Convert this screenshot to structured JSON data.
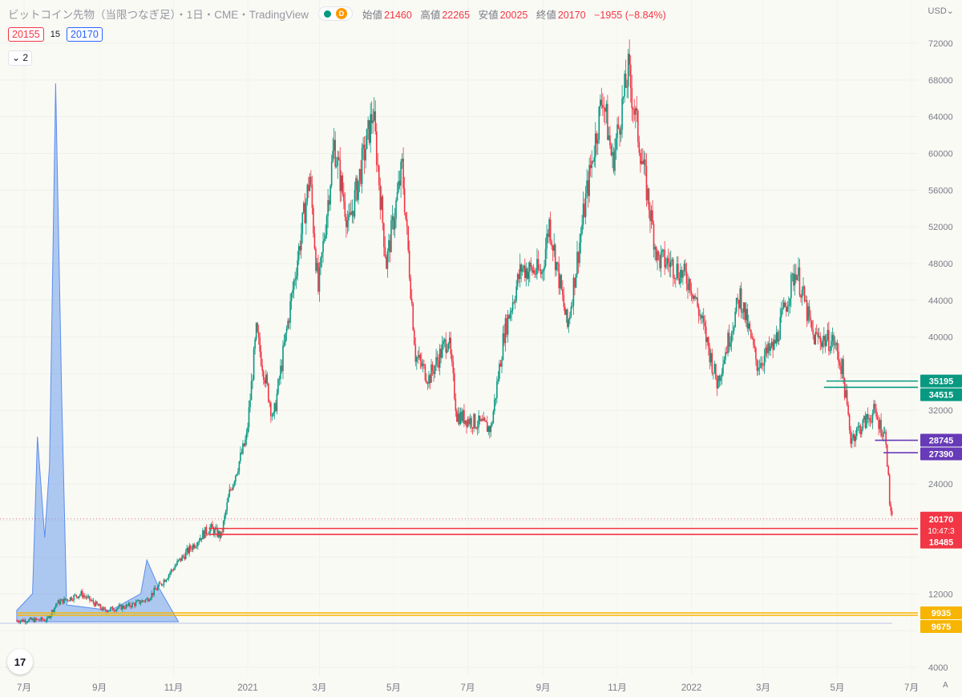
{
  "header": {
    "title": "ビットコイン先物（当限つなぎ足）・1日・CME・TradingView",
    "badge": "D",
    "ohlc_open_label": "始値",
    "ohlc_open": "21460",
    "ohlc_high_label": "高値",
    "ohlc_high": "22265",
    "ohlc_low_label": "安値",
    "ohlc_low": "20025",
    "ohlc_close_label": "終値",
    "ohlc_close": "20170",
    "ohlc_change": "−1955 (−8.84%)"
  },
  "quote": {
    "bid": "20155",
    "spread": "15",
    "ask": "20170"
  },
  "collapse_label": "2",
  "currency": "USD",
  "logo_text": "17",
  "auto_label": "A",
  "chart_data": {
    "type": "candlestick",
    "title": "ビットコイン先物（当限つなぎ足）",
    "interval": "1日",
    "exchange": "CME",
    "y_axis": {
      "ticks": [
        4000,
        8000,
        12000,
        16000,
        20000,
        24000,
        28000,
        32000,
        36000,
        40000,
        44000,
        48000,
        52000,
        56000,
        60000,
        64000,
        68000,
        72000
      ],
      "labels": [
        "4000",
        "",
        "12000",
        "",
        "",
        "24000",
        "",
        "32000",
        "",
        "40000",
        "44000",
        "48000",
        "52000",
        "56000",
        "60000",
        "64000",
        "68000",
        "72000"
      ],
      "range": [
        3400,
        73600
      ]
    },
    "x_axis": {
      "labels": [
        "7月",
        "9月",
        "11月",
        "2021",
        "3月",
        "5月",
        "7月",
        "9月",
        "11月",
        "2022",
        "3月",
        "5月",
        "7月"
      ],
      "dates": [
        "2020-07-01",
        "2020-09-01",
        "2020-11-01",
        "2021-01-01",
        "2021-03-01",
        "2021-05-01",
        "2021-07-01",
        "2021-09-01",
        "2021-11-01",
        "2022-01-01",
        "2022-03-01",
        "2022-05-01",
        "2022-07-01"
      ]
    },
    "price_path": [
      [
        "2020-06-25",
        9100
      ],
      [
        "2020-07-20",
        9200
      ],
      [
        "2020-07-28",
        11000
      ],
      [
        "2020-08-17",
        12000
      ],
      [
        "2020-09-05",
        10200
      ],
      [
        "2020-09-25",
        10700
      ],
      [
        "2020-10-10",
        11400
      ],
      [
        "2020-10-21",
        13000
      ],
      [
        "2020-11-05",
        15500
      ],
      [
        "2020-11-25",
        18500
      ],
      [
        "2020-12-01",
        19200
      ],
      [
        "2020-12-10",
        18300
      ],
      [
        "2020-12-17",
        23000
      ],
      [
        "2020-12-31",
        29000
      ],
      [
        "2021-01-08",
        40500
      ],
      [
        "2021-01-22",
        31000
      ],
      [
        "2021-02-08",
        46000
      ],
      [
        "2021-02-21",
        57500
      ],
      [
        "2021-02-28",
        45000
      ],
      [
        "2021-03-13",
        61000
      ],
      [
        "2021-03-25",
        52000
      ],
      [
        "2021-04-14",
        64500
      ],
      [
        "2021-04-25",
        48000
      ],
      [
        "2021-05-08",
        58500
      ],
      [
        "2021-05-19",
        38000
      ],
      [
        "2021-05-30",
        35500
      ],
      [
        "2021-06-15",
        40000
      ],
      [
        "2021-06-22",
        31500
      ],
      [
        "2021-07-20",
        30000
      ],
      [
        "2021-07-31",
        40500
      ],
      [
        "2021-08-14",
        47500
      ],
      [
        "2021-08-31",
        47000
      ],
      [
        "2021-09-06",
        52500
      ],
      [
        "2021-09-21",
        41000
      ],
      [
        "2021-10-06",
        55000
      ],
      [
        "2021-10-20",
        66500
      ],
      [
        "2021-10-28",
        59000
      ],
      [
        "2021-11-10",
        69000
      ],
      [
        "2021-11-24",
        57000
      ],
      [
        "2021-12-04",
        48500
      ],
      [
        "2021-12-15",
        48000
      ],
      [
        "2021-12-31",
        46000
      ],
      [
        "2022-01-10",
        41500
      ],
      [
        "2022-01-22",
        35000
      ],
      [
        "2022-02-10",
        44500
      ],
      [
        "2022-02-24",
        37000
      ],
      [
        "2022-03-10",
        39000
      ],
      [
        "2022-03-28",
        47500
      ],
      [
        "2022-04-11",
        40000
      ],
      [
        "2022-04-28",
        39500
      ],
      [
        "2022-05-05",
        36500
      ],
      [
        "2022-05-12",
        29000
      ],
      [
        "2022-05-31",
        31800
      ],
      [
        "2022-06-10",
        29000
      ],
      [
        "2022-06-13",
        22000
      ],
      [
        "2022-06-15",
        20170
      ]
    ],
    "volume_path": [
      [
        "2020-06-25",
        0.02
      ],
      [
        "2020-07-08",
        0.05
      ],
      [
        "2020-07-12",
        0.33
      ],
      [
        "2020-07-18",
        0.15
      ],
      [
        "2020-07-22",
        0.28
      ],
      [
        "2020-07-27",
        0.96
      ],
      [
        "2020-08-01",
        0.4
      ],
      [
        "2020-08-05",
        0.03
      ],
      [
        "2020-09-10",
        0.02
      ],
      [
        "2020-10-05",
        0.05
      ],
      [
        "2020-10-10",
        0.11
      ],
      [
        "2020-10-20",
        0.06
      ],
      [
        "2020-11-05",
        0.0
      ]
    ],
    "current_price": 20170,
    "countdown": "10:47:3",
    "levels": [
      {
        "value": 35195,
        "label": "35195",
        "color": "#089981",
        "start": "2022-04-22"
      },
      {
        "value": 34515,
        "label": "34515",
        "color": "#089981",
        "start": "2022-04-20"
      },
      {
        "value": 28745,
        "label": "28745",
        "color": "#673ab7",
        "start": "2022-06-01"
      },
      {
        "value": 27390,
        "label": "27390",
        "color": "#673ab7",
        "start": "2022-06-08"
      },
      {
        "value": 19135,
        "label": "19135",
        "color": "#f23645",
        "start": "2020-11-30"
      },
      {
        "value": 18485,
        "label": "18485",
        "color": "#f23645",
        "start": "2020-11-30"
      },
      {
        "value": 9935,
        "label": "9935",
        "color": "#f7b500",
        "start": "2020-06-25"
      },
      {
        "value": 9675,
        "label": "9675",
        "color": "#f7b500",
        "start": "2020-06-25"
      }
    ],
    "colors": {
      "up": "#089981",
      "down": "#f23645",
      "volume": "#6d9eeb",
      "background": "#fafaf5"
    }
  }
}
